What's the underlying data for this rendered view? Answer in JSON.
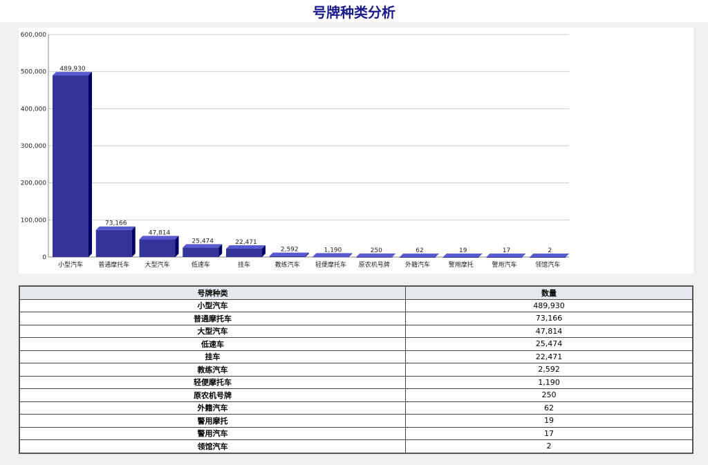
{
  "title": "号牌种类分析",
  "table": {
    "headers": [
      "号牌种类",
      "数量"
    ]
  },
  "chart_data": {
    "type": "bar",
    "title": "号牌种类分析",
    "categories": [
      "小型汽车",
      "普通摩托车",
      "大型汽车",
      "低速车",
      "挂车",
      "教练汽车",
      "轻便摩托车",
      "原农机号牌",
      "外籍汽车",
      "警用摩托",
      "警用汽车",
      "领馆汽车"
    ],
    "values": [
      489930,
      73166,
      47814,
      25474,
      22471,
      2592,
      1190,
      250,
      62,
      19,
      17,
      2
    ],
    "value_labels": [
      "489,930",
      "73,166",
      "47,814",
      "25,474",
      "22,471",
      "2,592",
      "1,190",
      "250",
      "62",
      "19",
      "17",
      "2"
    ],
    "ylim": [
      0,
      600000
    ],
    "yticks": [
      "0",
      "100,000",
      "200,000",
      "300,000",
      "400,000",
      "500,000",
      "600,000"
    ],
    "grid": true,
    "colors": {
      "front": "#333399",
      "top": "#5a5ad0",
      "side": "#000066"
    }
  }
}
